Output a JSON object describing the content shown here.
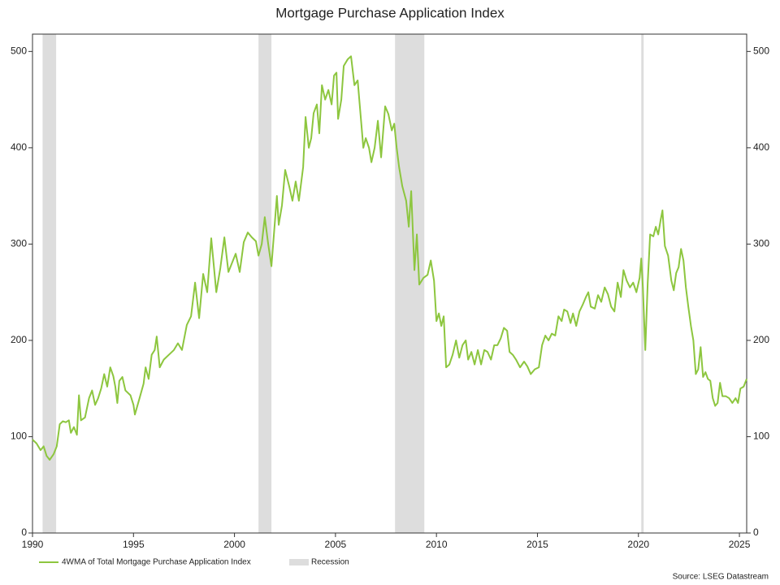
{
  "chart_data": {
    "type": "line",
    "title": "Mortgage Purchase Application Index",
    "source": "Source: LSEG Datastream",
    "xlim": [
      1990,
      2025.36
    ],
    "xticks": [
      1990,
      1995,
      2000,
      2005,
      2010,
      2015,
      2020,
      2025
    ],
    "ylim": [
      0,
      518
    ],
    "yticks": [
      0,
      100,
      200,
      300,
      400,
      500
    ],
    "recession": {
      "name": "Recession",
      "color": "#dddddd",
      "ranges": [
        [
          1990.5,
          1991.17
        ],
        [
          2001.19,
          2001.83
        ],
        [
          2007.95,
          2009.4
        ],
        [
          2020.14,
          2020.26
        ]
      ]
    },
    "series": [
      {
        "name": "4WMA of Total Mortgage Purchase Application Index",
        "color": "#8dc63f",
        "x": [
          1990.0,
          1990.2,
          1990.4,
          1990.55,
          1990.7,
          1990.85,
          1991.05,
          1991.2,
          1991.35,
          1991.5,
          1991.65,
          1991.8,
          1991.9,
          1992.05,
          1992.2,
          1992.3,
          1992.4,
          1992.6,
          1992.8,
          1992.95,
          1993.1,
          1993.25,
          1993.4,
          1993.55,
          1993.7,
          1993.85,
          1994.0,
          1994.1,
          1994.2,
          1994.3,
          1994.45,
          1994.6,
          1994.85,
          1995.0,
          1995.07,
          1995.3,
          1995.5,
          1995.6,
          1995.75,
          1995.9,
          1996.05,
          1996.15,
          1996.3,
          1996.5,
          1996.75,
          1997.0,
          1997.2,
          1997.4,
          1997.64,
          1997.85,
          1998.05,
          1998.25,
          1998.45,
          1998.65,
          1998.85,
          1999.1,
          1999.3,
          1999.5,
          1999.7,
          2000.06,
          2000.26,
          2000.46,
          2000.66,
          2000.86,
          2001.06,
          2001.19,
          2001.35,
          2001.5,
          2001.67,
          2001.83,
          2001.99,
          2002.1,
          2002.19,
          2002.35,
          2002.51,
          2002.71,
          2002.87,
          2003.03,
          2003.19,
          2003.4,
          2003.52,
          2003.68,
          2003.8,
          2003.92,
          2004.08,
          2004.2,
          2004.33,
          2004.49,
          2004.65,
          2004.81,
          2004.93,
          2005.05,
          2005.13,
          2005.29,
          2005.41,
          2005.61,
          2005.77,
          2005.94,
          2006.1,
          2006.26,
          2006.38,
          2006.5,
          2006.66,
          2006.78,
          2006.94,
          2007.1,
          2007.26,
          2007.46,
          2007.62,
          2007.79,
          2007.91,
          2008.03,
          2008.15,
          2008.31,
          2008.5,
          2008.63,
          2008.75,
          2008.91,
          2009.03,
          2009.15,
          2009.36,
          2009.56,
          2009.72,
          2009.88,
          2010.0,
          2010.12,
          2010.24,
          2010.36,
          2010.48,
          2010.64,
          2010.8,
          2010.97,
          2011.13,
          2011.29,
          2011.45,
          2011.57,
          2011.73,
          2011.89,
          2012.05,
          2012.21,
          2012.37,
          2012.53,
          2012.7,
          2012.86,
          2013.02,
          2013.18,
          2013.34,
          2013.5,
          2013.62,
          2013.78,
          2013.94,
          2014.14,
          2014.34,
          2014.5,
          2014.67,
          2014.87,
          2015.07,
          2015.23,
          2015.39,
          2015.55,
          2015.71,
          2015.88,
          2016.04,
          2016.2,
          2016.32,
          2016.48,
          2016.64,
          2016.76,
          2016.92,
          2017.08,
          2017.24,
          2017.4,
          2017.52,
          2017.64,
          2017.84,
          2018.0,
          2018.16,
          2018.33,
          2018.49,
          2018.65,
          2018.81,
          2018.97,
          2019.13,
          2019.26,
          2019.42,
          2019.58,
          2019.74,
          2019.9,
          2020.06,
          2020.14,
          2020.22,
          2020.34,
          2020.46,
          2020.58,
          2020.74,
          2020.86,
          2020.98,
          2021.1,
          2021.19,
          2021.31,
          2021.47,
          2021.63,
          2021.75,
          2021.87,
          2021.99,
          2022.11,
          2022.23,
          2022.35,
          2022.47,
          2022.6,
          2022.72,
          2022.84,
          2022.96,
          2023.08,
          2023.2,
          2023.32,
          2023.44,
          2023.56,
          2023.68,
          2023.8,
          2023.92,
          2024.04,
          2024.16,
          2024.33,
          2024.49,
          2024.65,
          2024.81,
          2024.93,
          2025.05,
          2025.21,
          2025.36
        ],
        "values": [
          97,
          93,
          86,
          90,
          80,
          76,
          82,
          90,
          113,
          116,
          115,
          117,
          104,
          110,
          102,
          143,
          117,
          120,
          140,
          148,
          133,
          140,
          150,
          165,
          152,
          172,
          163,
          152,
          135,
          158,
          162,
          148,
          143,
          133,
          123,
          140,
          155,
          172,
          160,
          185,
          190,
          204,
          172,
          180,
          185,
          190,
          197,
          190,
          216,
          225,
          260,
          223,
          269,
          250,
          306,
          250,
          275,
          307,
          271,
          290,
          271,
          302,
          312,
          307,
          303,
          288,
          300,
          328,
          300,
          277,
          320,
          350,
          320,
          340,
          377,
          360,
          345,
          365,
          345,
          380,
          432,
          400,
          410,
          436,
          445,
          415,
          465,
          450,
          460,
          445,
          475,
          478,
          430,
          450,
          485,
          492,
          495,
          465,
          470,
          430,
          400,
          410,
          400,
          385,
          400,
          428,
          390,
          443,
          435,
          418,
          425,
          400,
          380,
          360,
          345,
          318,
          355,
          273,
          310,
          258,
          265,
          268,
          283,
          262,
          220,
          228,
          215,
          225,
          172,
          175,
          185,
          200,
          182,
          195,
          200,
          180,
          188,
          175,
          190,
          175,
          190,
          188,
          180,
          195,
          195,
          202,
          213,
          210,
          188,
          185,
          180,
          172,
          178,
          173,
          165,
          170,
          172,
          195,
          205,
          200,
          207,
          205,
          225,
          220,
          232,
          230,
          218,
          228,
          215,
          230,
          237,
          245,
          250,
          235,
          233,
          247,
          240,
          255,
          248,
          235,
          230,
          260,
          245,
          273,
          262,
          255,
          260,
          250,
          265,
          285,
          255,
          190,
          260,
          310,
          308,
          318,
          310,
          325,
          335,
          298,
          288,
          262,
          252,
          270,
          276,
          295,
          283,
          255,
          235,
          215,
          200,
          165,
          170,
          193,
          162,
          167,
          160,
          158,
          140,
          132,
          135,
          156,
          142,
          142,
          140,
          135,
          140,
          135,
          150,
          152,
          160
        ]
      }
    ]
  }
}
